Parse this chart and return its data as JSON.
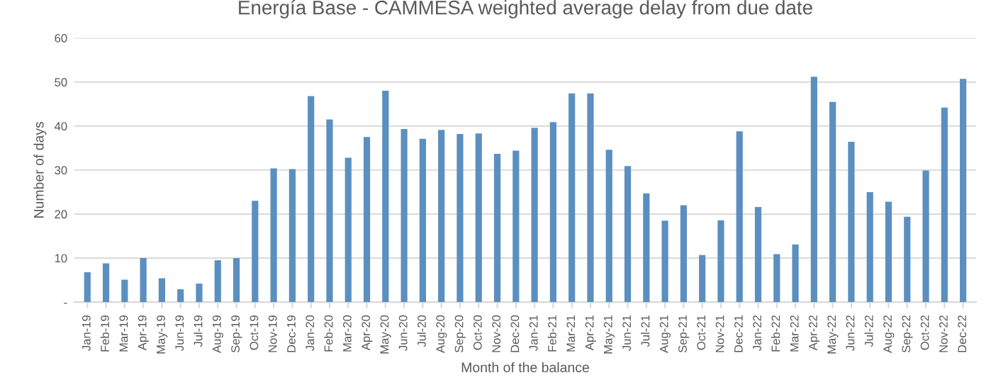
{
  "chart_data": {
    "type": "bar",
    "title": "Energía Base - CAMMESA weighted average delay from due date",
    "xlabel": "Month of the balance",
    "ylabel": "Number of days",
    "categories": [
      "Jan-19",
      "Feb-19",
      "Mar-19",
      "Apr-19",
      "May-19",
      "Jun-19",
      "Jul-19",
      "Aug-19",
      "Sep-19",
      "Oct-19",
      "Nov-19",
      "Dec-19",
      "Jan-20",
      "Feb-20",
      "Mar-20",
      "Apr-20",
      "May-20",
      "Jun-20",
      "Jul-20",
      "Aug-20",
      "Sep-20",
      "Oct-20",
      "Nov-20",
      "Dec-20",
      "Jan-21",
      "Feb-21",
      "Mar-21",
      "Apr-21",
      "May-21",
      "Jun-21",
      "Jul-21",
      "Aug-21",
      "Sep-21",
      "Oct-21",
      "Nov-21",
      "Dec-21",
      "Jan-22",
      "Feb-22",
      "Mar-22",
      "Apr-22",
      "May-22",
      "Jun-22",
      "Jul-22",
      "Aug-22",
      "Sep-22",
      "Oct-22",
      "Nov-22",
      "Dec-22"
    ],
    "values": [
      6.8,
      8.8,
      5.1,
      10,
      5.4,
      2.9,
      4.2,
      9.5,
      10,
      23,
      30.4,
      30.2,
      46.8,
      41.5,
      32.8,
      37.5,
      48,
      39.3,
      37.1,
      39.1,
      38.2,
      38.3,
      33.7,
      34.4,
      39.6,
      40.9,
      47.4,
      47.4,
      34.6,
      30.9,
      24.7,
      18.5,
      22,
      10.7,
      18.6,
      38.8,
      21.6,
      10.9,
      13.1,
      51.2,
      45.5,
      36.4,
      25,
      22.8,
      19.4,
      29.9,
      44.2,
      50.7
    ],
    "color": "#5b8fbf",
    "ylim": [
      0,
      60
    ],
    "yticks": [
      {
        "value": 0,
        "label": "-"
      },
      10,
      20,
      30,
      40,
      50,
      60
    ],
    "grid": "y",
    "legend": false
  }
}
